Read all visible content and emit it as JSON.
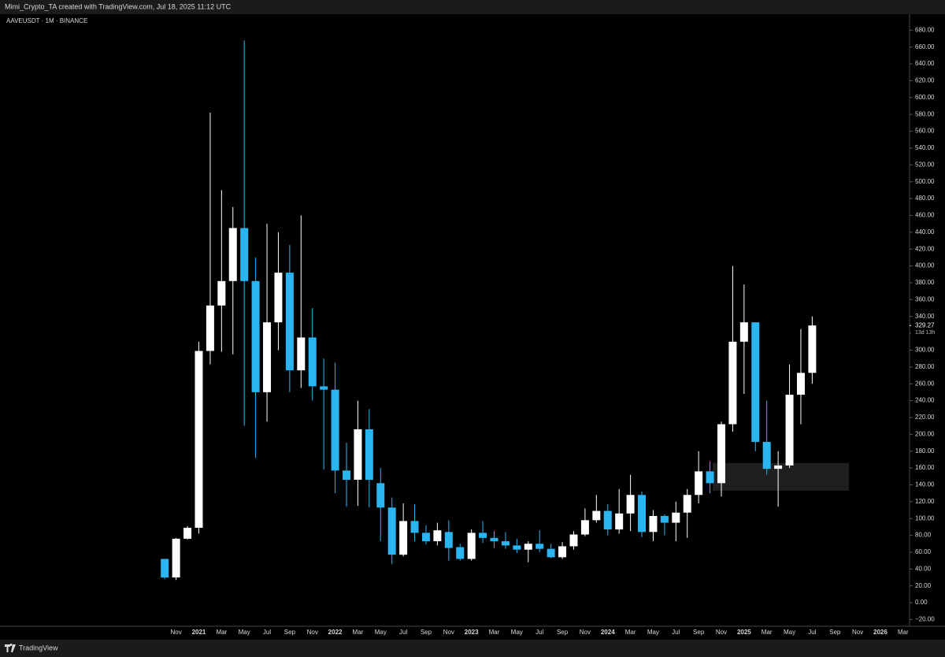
{
  "header": {
    "credit": "Mimi_Crypto_TA created with TradingView.com, Jul 18, 2025 11:12 UTC"
  },
  "footer": {
    "brand": "TradingView"
  },
  "chart_data": {
    "type": "candlestick",
    "title": "AAVEUSDT · 1M · BINANCE",
    "up_color": "#ffffff",
    "down_color": "#2ab4f0",
    "grid": false,
    "categories": [
      null,
      "Nov",
      null,
      "2021",
      null,
      "Mar",
      null,
      "May",
      null,
      "Jul",
      null,
      "Sep",
      null,
      "Nov",
      null,
      "2022",
      null,
      "Mar",
      null,
      "May",
      null,
      "Jul",
      null,
      "Sep",
      null,
      "Nov",
      null,
      "2023",
      null,
      "Mar",
      null,
      "May",
      null,
      "Jul",
      null,
      "Sep",
      null,
      "Nov",
      null,
      "2024",
      null,
      "Mar",
      null,
      "May",
      null,
      "Jul",
      null,
      "Sep",
      null,
      "Nov",
      null,
      "2025",
      null,
      "Mar",
      null,
      "May",
      null,
      "Jul",
      null,
      "Sep",
      null,
      "Nov",
      null,
      "2026",
      null,
      "Mar"
    ],
    "open": [
      52,
      30,
      76,
      89,
      299,
      353,
      382,
      445,
      382,
      250,
      333,
      392,
      276,
      315,
      257,
      253,
      157,
      146,
      206,
      142,
      113,
      57,
      97,
      83,
      73,
      84,
      66,
      52,
      83,
      77,
      73,
      68,
      63,
      70,
      64,
      54,
      67,
      81,
      98,
      109,
      87,
      106,
      128,
      84,
      103,
      95,
      107,
      128,
      156,
      142,
      212,
      310,
      333,
      191,
      159,
      163,
      247,
      273,
      null,
      null,
      null,
      null,
      null,
      null,
      null,
      null
    ],
    "high": [
      52,
      77,
      91,
      310,
      582,
      490,
      470,
      668,
      410,
      450,
      440,
      425,
      460,
      350,
      290,
      285,
      190,
      240,
      230,
      160,
      125,
      118,
      117,
      92,
      95,
      98,
      70,
      87,
      97,
      85,
      84,
      76,
      73,
      86,
      70,
      72,
      85,
      112,
      128,
      117,
      135,
      152,
      132,
      110,
      105,
      120,
      135,
      180,
      168,
      215,
      400,
      378,
      333,
      240,
      180,
      283,
      325,
      340,
      null,
      null,
      null,
      null,
      null,
      null,
      null,
      null
    ],
    "low": [
      28,
      27,
      75,
      82,
      283,
      298,
      295,
      210,
      172,
      215,
      300,
      250,
      255,
      240,
      158,
      130,
      114,
      115,
      113,
      73,
      46,
      55,
      73,
      69,
      68,
      50,
      50,
      50,
      71,
      65,
      64,
      59,
      48,
      60,
      53,
      52,
      63,
      79,
      95,
      80,
      82,
      85,
      78,
      73,
      80,
      73,
      77,
      118,
      130,
      126,
      203,
      248,
      180,
      152,
      114,
      160,
      212,
      260,
      null,
      null,
      null,
      null,
      null,
      null,
      null,
      null
    ],
    "close": [
      30,
      76,
      89,
      299,
      353,
      382,
      445,
      382,
      250,
      333,
      392,
      276,
      315,
      257,
      253,
      157,
      146,
      206,
      146,
      113,
      57,
      97,
      83,
      73,
      86,
      65,
      52,
      83,
      77,
      73,
      68,
      63,
      70,
      64,
      54,
      67,
      81,
      98,
      109,
      87,
      106,
      128,
      84,
      103,
      95,
      107,
      128,
      156,
      142,
      212,
      310,
      333,
      191,
      159,
      163,
      247,
      273,
      329.27,
      null,
      null,
      null,
      null,
      null,
      null,
      null,
      null
    ],
    "last_price": {
      "value": 329.27,
      "countdown": "13d 13h"
    },
    "zone": {
      "low": 133,
      "high": 166
    },
    "ylim": [
      -28,
      699
    ],
    "yticks": [
      {
        "value": -20,
        "label": "−20.00"
      },
      {
        "value": 0,
        "label": "0.00"
      },
      {
        "value": 20,
        "label": "20.00"
      },
      {
        "value": 40,
        "label": "40.00"
      },
      {
        "value": 60,
        "label": "60.00"
      },
      {
        "value": 80,
        "label": "80.00"
      },
      {
        "value": 100,
        "label": "100.00"
      },
      {
        "value": 120,
        "label": "120.00"
      },
      {
        "value": 140,
        "label": "140.00"
      },
      {
        "value": 160,
        "label": "160.00"
      },
      {
        "value": 180,
        "label": "180.00"
      },
      {
        "value": 200,
        "label": "200.00"
      },
      {
        "value": 220,
        "label": "220.00"
      },
      {
        "value": 240,
        "label": "240.00"
      },
      {
        "value": 260,
        "label": "260.00"
      },
      {
        "value": 280,
        "label": "280.00"
      },
      {
        "value": 300,
        "label": "300.00"
      },
      {
        "value": 320,
        "label": "320.00"
      },
      {
        "value": 340,
        "label": "340.00"
      },
      {
        "value": 360,
        "label": "360.00"
      },
      {
        "value": 380,
        "label": "380.00"
      },
      {
        "value": 400,
        "label": "400.00"
      },
      {
        "value": 420,
        "label": "420.00"
      },
      {
        "value": 440,
        "label": "440.00"
      },
      {
        "value": 460,
        "label": "460.00"
      },
      {
        "value": 480,
        "label": "480.00"
      },
      {
        "value": 500,
        "label": "500.00"
      },
      {
        "value": 520,
        "label": "520.00"
      },
      {
        "value": 540,
        "label": "540.00"
      },
      {
        "value": 560,
        "label": "560.00"
      },
      {
        "value": 580,
        "label": "580.00"
      },
      {
        "value": 600,
        "label": "600.00"
      },
      {
        "value": 620,
        "label": "620.00"
      },
      {
        "value": 640,
        "label": "640.00"
      },
      {
        "value": 660,
        "label": "660.00"
      },
      {
        "value": 680,
        "label": "680.00"
      }
    ]
  }
}
